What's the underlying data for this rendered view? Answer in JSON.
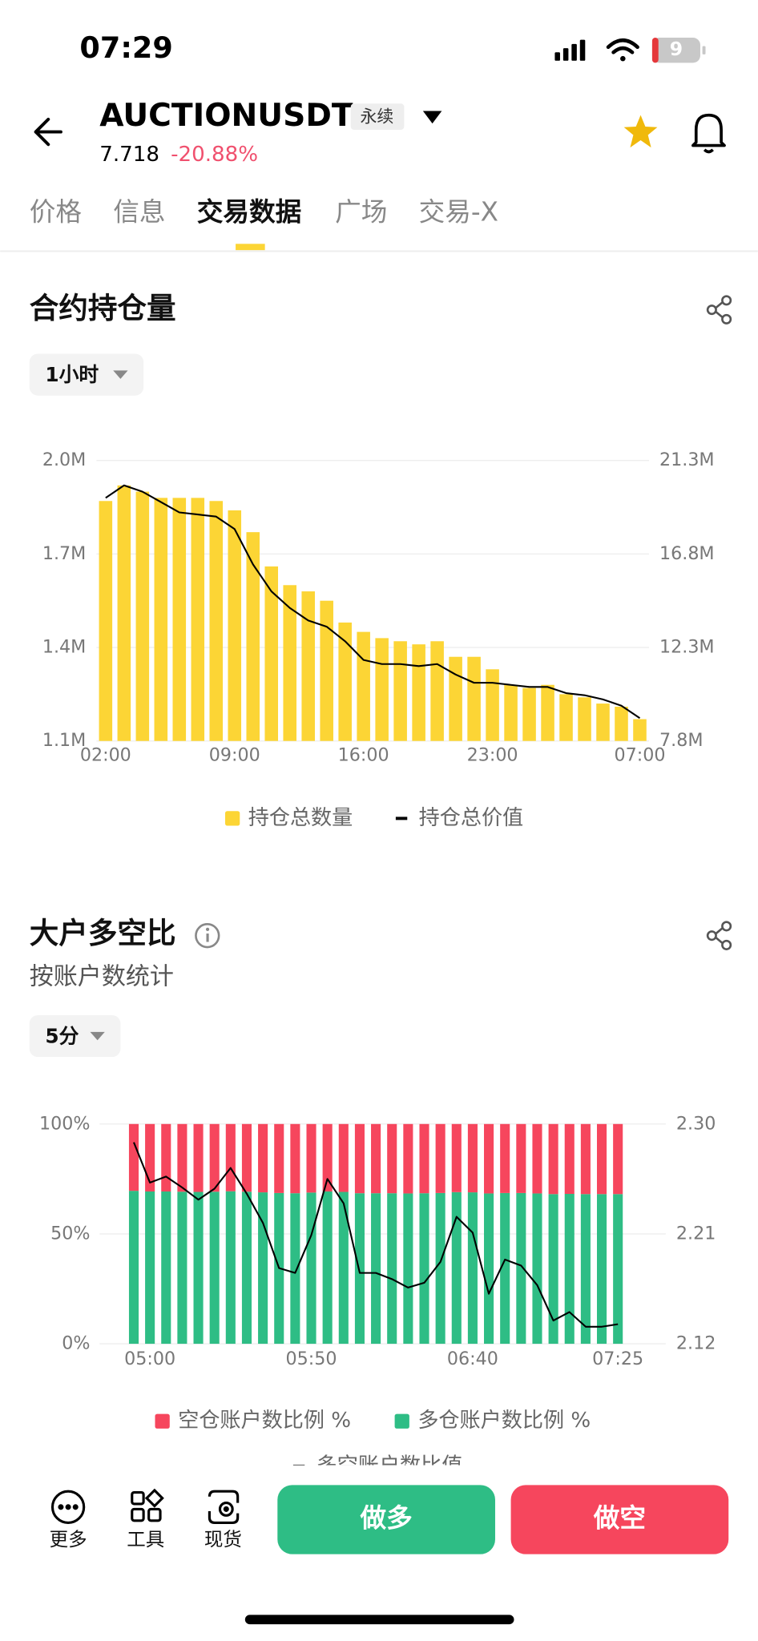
{
  "status_bar": {
    "time": "07:29",
    "battery": "9"
  },
  "header": {
    "symbol": "AUCTIONUSDT",
    "badge": "永续",
    "price": "7.718",
    "change": "-20.88%"
  },
  "tabs": [
    "价格",
    "信息",
    "交易数据",
    "广场",
    "交易-X"
  ],
  "active_tab": 2,
  "sections": [
    {
      "title": "合约持仓量",
      "interval": "1小时"
    },
    {
      "title": "大户多空比",
      "subtitle": "按账户数统计",
      "interval": "5分"
    }
  ],
  "bottom_bar": {
    "tools": [
      "更多",
      "工具",
      "现货"
    ],
    "buy": "做多",
    "sell": "做空"
  },
  "chart_data": [
    {
      "type": "bar",
      "grid": true,
      "categories": [
        "02:00",
        null,
        null,
        null,
        null,
        null,
        null,
        "09:00",
        null,
        null,
        null,
        null,
        null,
        null,
        "16:00",
        null,
        null,
        null,
        null,
        null,
        null,
        "23:00",
        null,
        null,
        null,
        null,
        null,
        null,
        null,
        "07:00"
      ],
      "series": [
        {
          "name": "持仓总数量",
          "color": "#fcd535",
          "values": [
            1870000,
            1920000,
            1900000,
            1880000,
            1880000,
            1880000,
            1870000,
            1840000,
            1770000,
            1660000,
            1600000,
            1580000,
            1550000,
            1480000,
            1450000,
            1430000,
            1420000,
            1410000,
            1420000,
            1370000,
            1370000,
            1330000,
            1280000,
            1270000,
            1280000,
            1250000,
            1240000,
            1220000,
            1210000,
            1170000
          ]
        },
        {
          "name": "持仓总价值",
          "color": "#000000",
          "type": "line",
          "axis": "y2",
          "values": [
            19500000,
            20100000,
            19800000,
            19300000,
            18800000,
            18700000,
            18600000,
            18000000,
            16300000,
            15000000,
            14200000,
            13600000,
            13300000,
            12600000,
            11700000,
            11500000,
            11500000,
            11400000,
            11500000,
            11000000,
            10600000,
            10600000,
            10500000,
            10400000,
            10400000,
            10100000,
            10000000,
            9800000,
            9500000,
            8900000
          ]
        }
      ],
      "ylim": [
        1100000,
        2000000
      ],
      "yticks": [
        {
          "value": 1100000,
          "label": "1.1M"
        },
        {
          "value": 1400000,
          "label": "1.4M"
        },
        {
          "value": 1700000,
          "label": "1.7M"
        },
        {
          "value": 2000000,
          "label": "2.0M"
        }
      ],
      "y2lim": [
        7800000,
        21300000
      ],
      "y2ticks": [
        {
          "value": 7800000,
          "label": "7.8M"
        },
        {
          "value": 12300000,
          "label": "12.3M"
        },
        {
          "value": 16800000,
          "label": "16.8M"
        },
        {
          "value": 21300000,
          "label": "21.3M"
        }
      ]
    },
    {
      "type": "bar",
      "stacked": true,
      "grid": true,
      "categories": [
        null,
        "05:00",
        null,
        null,
        null,
        null,
        null,
        null,
        null,
        null,
        null,
        "05:50",
        null,
        null,
        null,
        null,
        null,
        null,
        null,
        null,
        null,
        "06:40",
        null,
        null,
        null,
        null,
        null,
        null,
        null,
        null,
        "07:25"
      ],
      "series": [
        {
          "name": "空仓账户数比例 %",
          "color": "#f6465d",
          "values": [
            30.4,
            30.7,
            30.7,
            30.8,
            30.9,
            30.8,
            30.6,
            30.8,
            31.1,
            31.4,
            31.5,
            31.2,
            30.7,
            30.9,
            31.5,
            31.5,
            31.5,
            31.6,
            31.5,
            31.4,
            31.0,
            31.1,
            31.6,
            31.4,
            31.4,
            31.6,
            31.9,
            31.8,
            31.9,
            31.9,
            31.9
          ]
        },
        {
          "name": "多仓账户数比例 %",
          "color": "#2ebd85",
          "values": [
            69.6,
            69.3,
            69.3,
            69.2,
            69.1,
            69.2,
            69.4,
            69.2,
            68.9,
            68.6,
            68.5,
            68.8,
            69.3,
            69.1,
            68.5,
            68.5,
            68.5,
            68.4,
            68.5,
            68.6,
            69.0,
            68.9,
            68.4,
            68.6,
            68.6,
            68.4,
            68.1,
            68.2,
            68.1,
            68.1,
            68.1
          ]
        },
        {
          "name": "多空账户数比值",
          "color": "#000000",
          "type": "line",
          "axis": "y2",
          "values": [
            2.285,
            2.252,
            2.257,
            2.248,
            2.238,
            2.247,
            2.264,
            2.243,
            2.219,
            2.182,
            2.178,
            2.209,
            2.255,
            2.235,
            2.178,
            2.178,
            2.173,
            2.166,
            2.17,
            2.187,
            2.224,
            2.211,
            2.161,
            2.189,
            2.184,
            2.168,
            2.139,
            2.146,
            2.134,
            2.134,
            2.136
          ]
        }
      ],
      "ylim": [
        0,
        100
      ],
      "yticks": [
        {
          "value": 0,
          "label": "0%"
        },
        {
          "value": 50,
          "label": "50%"
        },
        {
          "value": 100,
          "label": "100%"
        }
      ],
      "y2lim": [
        2.12,
        2.3
      ],
      "y2ticks": [
        {
          "value": 2.12,
          "label": "2.12"
        },
        {
          "value": 2.21,
          "label": "2.21"
        },
        {
          "value": 2.3,
          "label": "2.30"
        }
      ]
    }
  ]
}
